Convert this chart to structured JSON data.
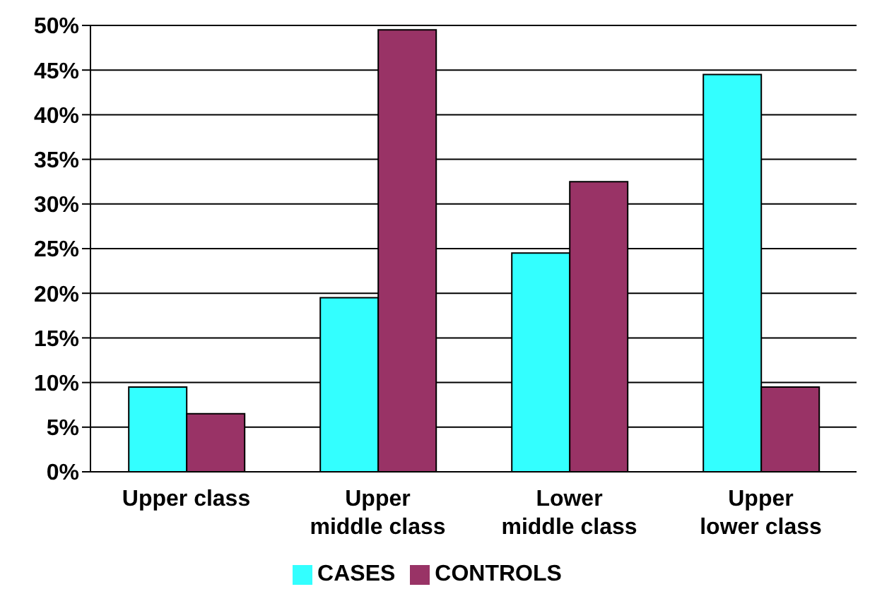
{
  "chart_data": {
    "type": "bar",
    "categories": [
      "Upper class",
      "Upper middle class",
      "Lower middle class",
      "Upper lower class"
    ],
    "series": [
      {
        "name": "CASES",
        "color": "#33ffff",
        "values": [
          9.5,
          19.5,
          24.5,
          44.5
        ]
      },
      {
        "name": "CONTROLS",
        "color": "#993366",
        "values": [
          6.5,
          49.5,
          32.5,
          9.5
        ]
      }
    ],
    "ylim": [
      0,
      50
    ],
    "yticks": [
      {
        "value": 0,
        "label": "0%"
      },
      {
        "value": 5,
        "label": "5%"
      },
      {
        "value": 10,
        "label": "10%"
      },
      {
        "value": 15,
        "label": "15%"
      },
      {
        "value": 20,
        "label": "20%"
      },
      {
        "value": 25,
        "label": "25%"
      },
      {
        "value": 30,
        "label": "30%"
      },
      {
        "value": 35,
        "label": "35%"
      },
      {
        "value": 40,
        "label": "40%"
      },
      {
        "value": 45,
        "label": "45%"
      },
      {
        "value": 50,
        "label": "50%"
      }
    ],
    "grid": "y",
    "legend": "bottom"
  }
}
